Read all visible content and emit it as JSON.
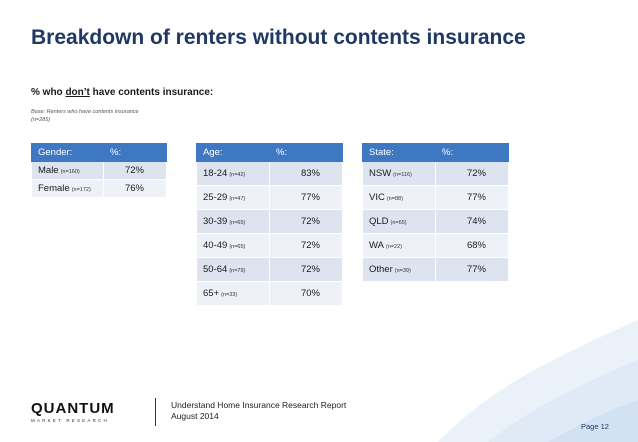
{
  "title": "Breakdown of renters without contents insurance",
  "subtitle": {
    "prefix": "% who ",
    "emphasis": "don’t",
    "suffix": " have contents insurance:"
  },
  "base_note": "Base: Renters who have contents insurance (n=285)",
  "tables": {
    "gender": {
      "headers": [
        "Gender:",
        "%:"
      ],
      "rows": [
        {
          "label": "Male",
          "n": "(n=160)",
          "value": "72%"
        },
        {
          "label": "Female",
          "n": "(n=172)",
          "value": "76%"
        }
      ]
    },
    "age": {
      "headers": [
        "Age:",
        "%:"
      ],
      "rows": [
        {
          "label": "18-24",
          "n": "(n=42)",
          "value": "83%"
        },
        {
          "label": "25-29",
          "n": "(n=47)",
          "value": "77%"
        },
        {
          "label": "30-39",
          "n": "(n=65)",
          "value": "72%"
        },
        {
          "label": "40-49",
          "n": "(n=65)",
          "value": "72%"
        },
        {
          "label": "50-64",
          "n": "(n=79)",
          "value": "72%"
        },
        {
          "label": "65+",
          "n": "(n=33)",
          "value": "70%"
        }
      ]
    },
    "state": {
      "headers": [
        "State:",
        "%:"
      ],
      "rows": [
        {
          "label": "NSW",
          "n": "(n=116)",
          "value": "72%"
        },
        {
          "label": "VIC",
          "n": "(n=88)",
          "value": "77%"
        },
        {
          "label": "QLD",
          "n": "(n=65)",
          "value": "74%"
        },
        {
          "label": "WA",
          "n": "(n=22)",
          "value": "68%"
        },
        {
          "label": "Other",
          "n": "(n=39)",
          "value": "77%"
        }
      ]
    }
  },
  "footer": {
    "logo_name": "QUANTUM",
    "logo_sub": "MARKET RESEARCH",
    "report_title": "Understand Home Insurance Research Report",
    "report_date": "August 2014",
    "page": "Page 12"
  },
  "colors": {
    "title": "#1f3864",
    "header_fill": "#3e78c3",
    "row_fill_odd": "#dde4f0",
    "row_fill_even": "#eef2f8",
    "wave_fill": "#e3edf7"
  }
}
